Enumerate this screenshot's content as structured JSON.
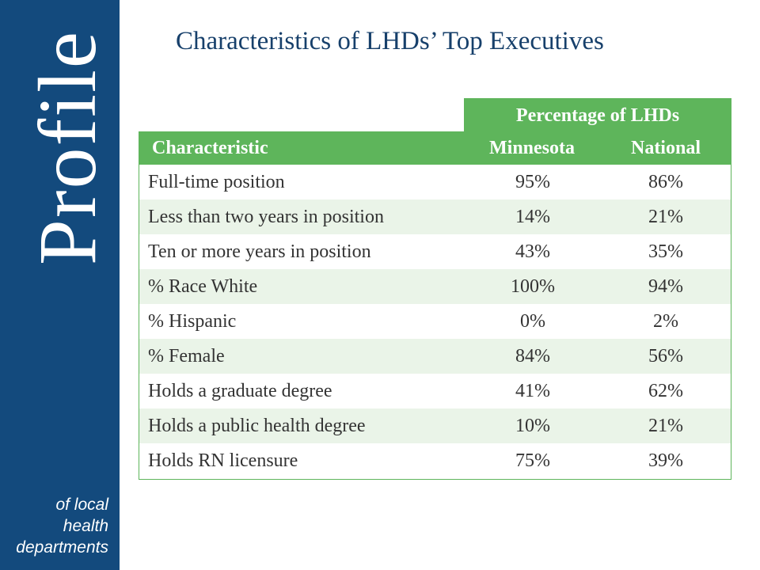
{
  "sidebar": {
    "brand": "Profile",
    "tagline": [
      "of local",
      "health",
      "departments"
    ]
  },
  "title": "Characteristics of LHDs’ Top Executives",
  "table": {
    "super_header": "Percentage of LHDs",
    "headers": [
      "Characteristic",
      "Minnesota",
      "National"
    ],
    "rows": [
      {
        "characteristic": "Full-time position",
        "minnesota": "95%",
        "national": "86%"
      },
      {
        "characteristic": "Less than two years in position",
        "minnesota": "14%",
        "national": "21%"
      },
      {
        "characteristic": "Ten or more years in position",
        "minnesota": "43%",
        "national": "35%"
      },
      {
        "characteristic": "% Race White",
        "minnesota": "100%",
        "national": "94%"
      },
      {
        "characteristic": "% Hispanic",
        "minnesota": "0%",
        "national": "2%"
      },
      {
        "characteristic": "% Female",
        "minnesota": "84%",
        "national": "56%"
      },
      {
        "characteristic": "Holds a graduate degree",
        "minnesota": "41%",
        "national": "62%"
      },
      {
        "characteristic": "Holds a public health degree",
        "minnesota": "10%",
        "national": "21%"
      },
      {
        "characteristic": "Holds RN licensure",
        "minnesota": "75%",
        "national": "39%"
      }
    ]
  },
  "colors": {
    "sidebar": "#134a7d",
    "title": "#17406b",
    "header_green": "#5eb55b",
    "row_alt": "#eaf4e8"
  }
}
